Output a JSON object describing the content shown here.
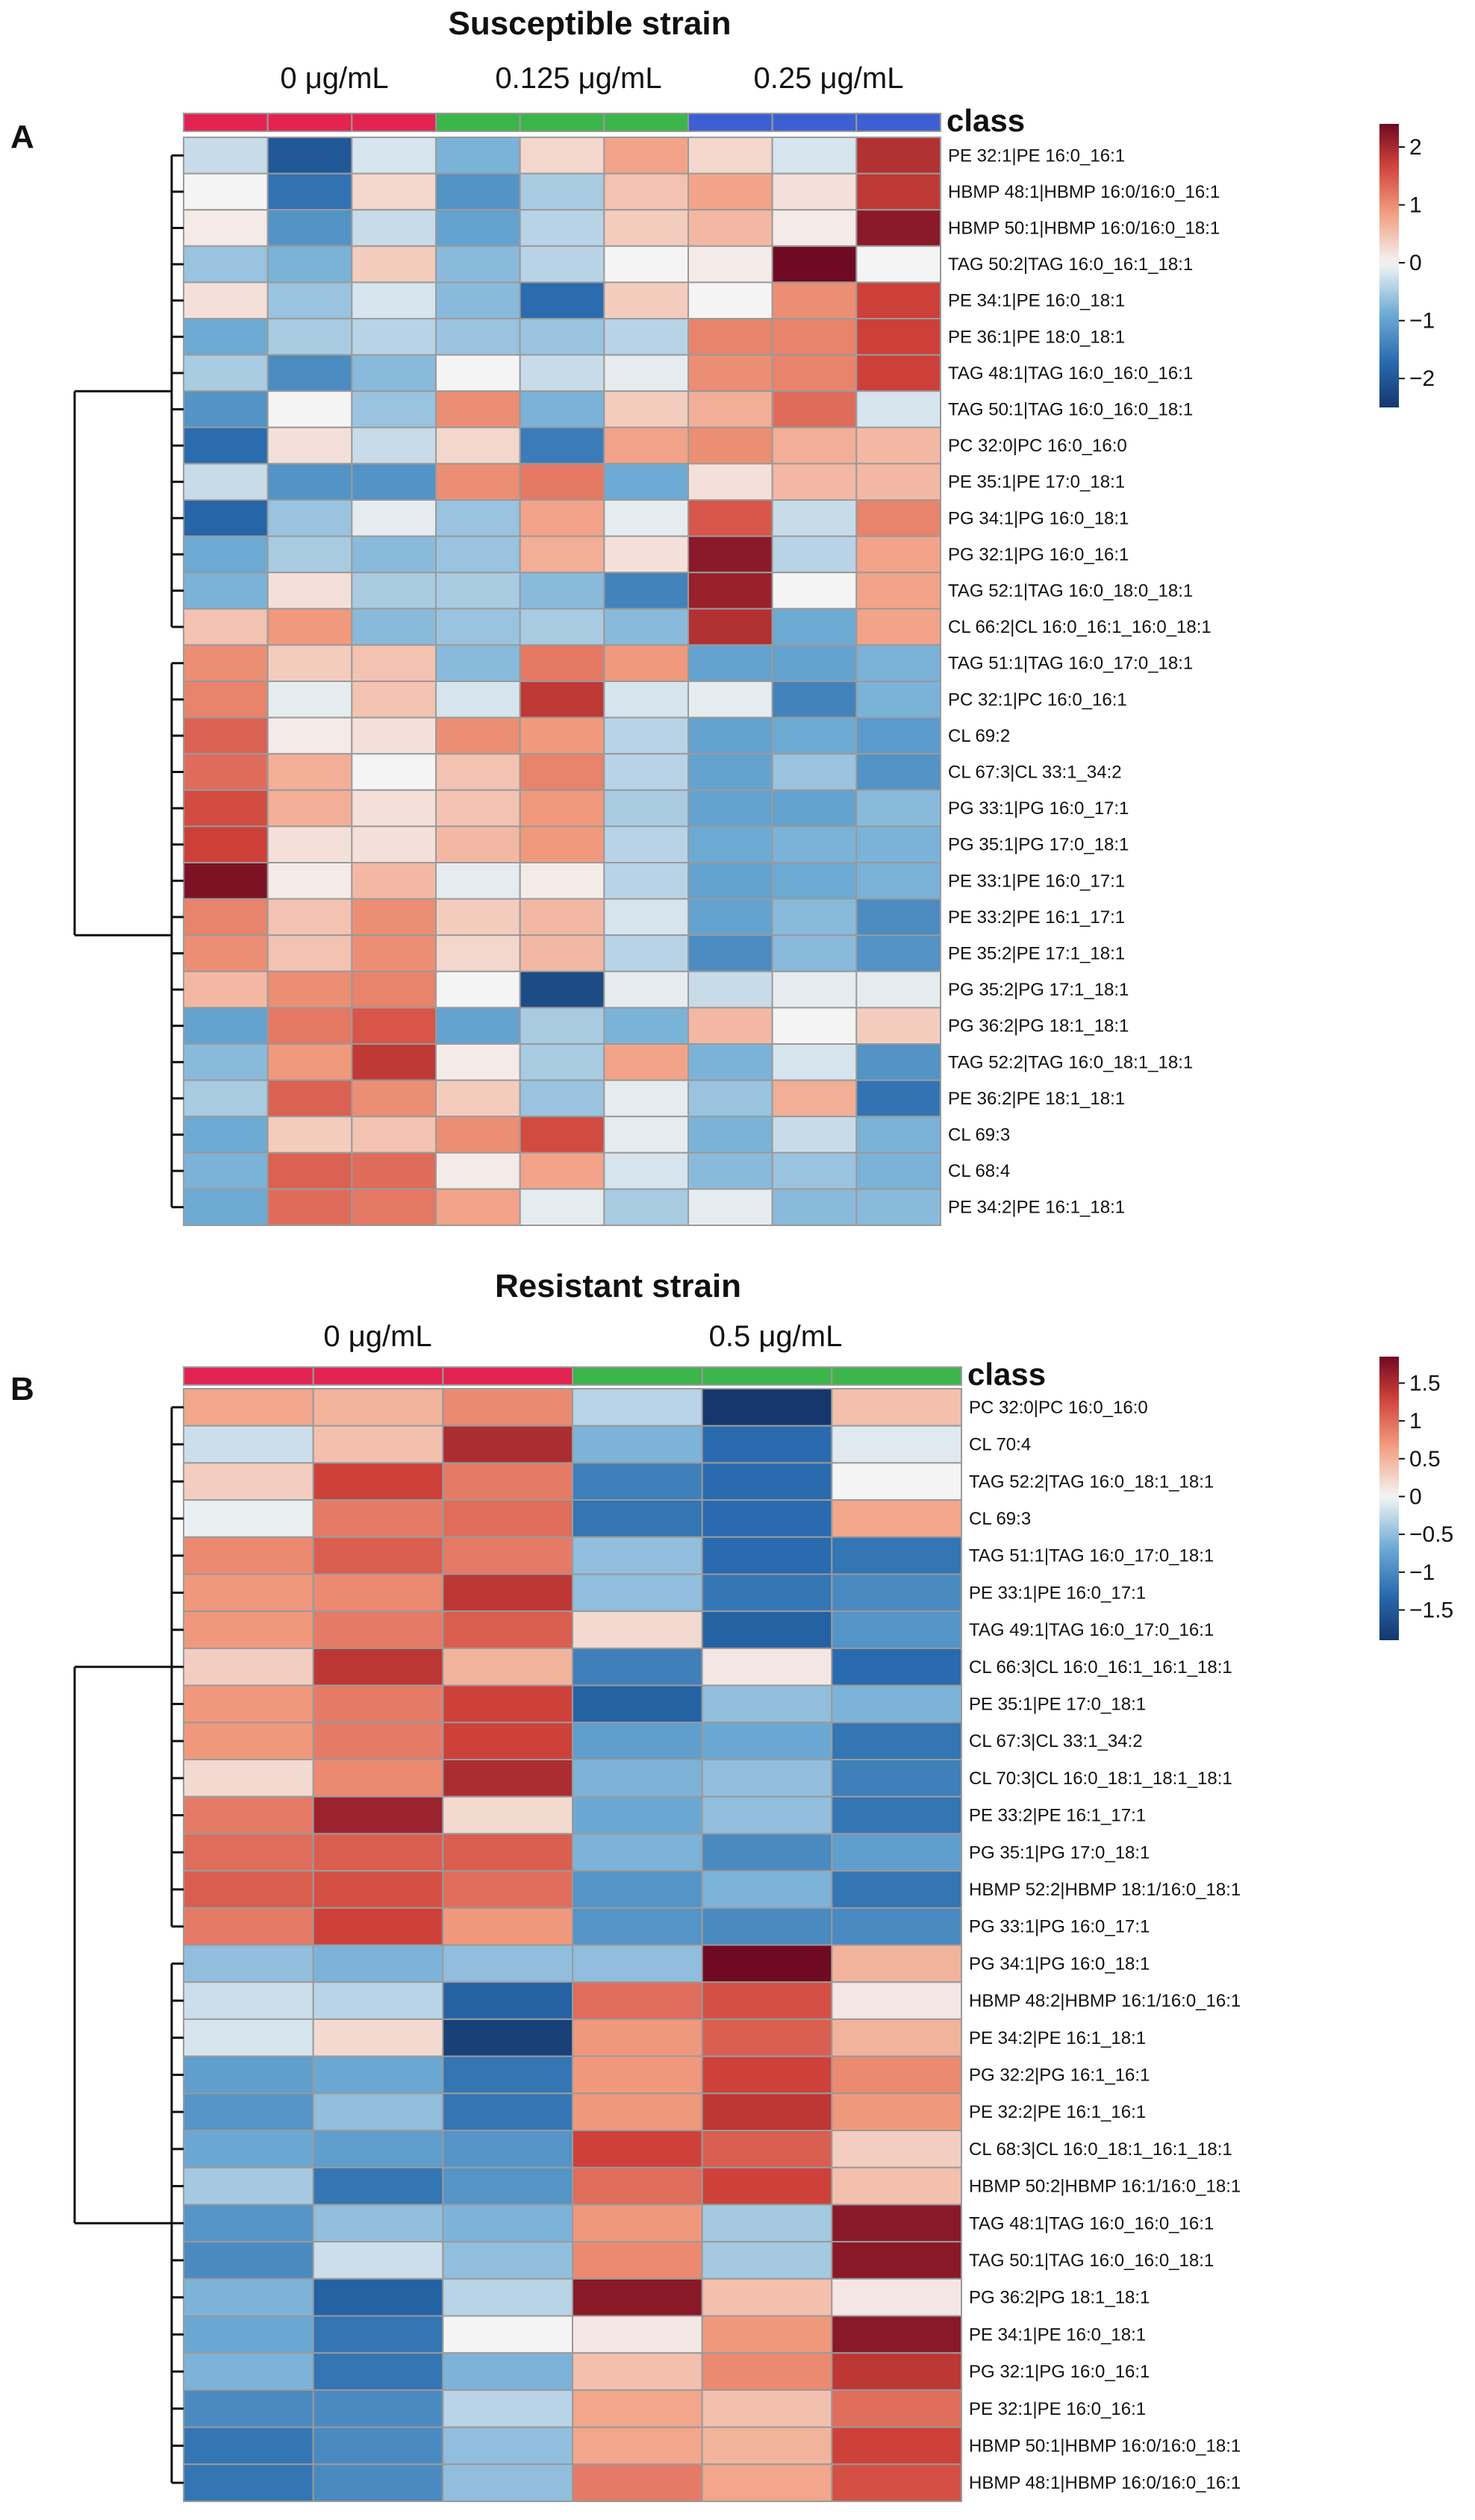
{
  "chart_data": [
    {
      "type": "heatmap",
      "panel_label": "A",
      "title": "Susceptible strain",
      "class_label": "class",
      "groups": [
        {
          "name": "0 μg/mL",
          "color": "#e32351",
          "n": 3
        },
        {
          "name": "0.125 μg/mL",
          "color": "#3cb54a",
          "n": 3
        },
        {
          "name": "0.25 μg/mL",
          "color": "#3d5fd1",
          "n": 3
        }
      ],
      "colorbar": {
        "min": -2.5,
        "max": 2.4,
        "ticks": [
          2,
          1,
          0,
          -1,
          -2
        ],
        "tick_labels": [
          "2",
          "1",
          "0",
          "−1",
          "−2"
        ]
      },
      "rows": [
        "PE 32:1|PE 16:0_16:1",
        "HBMP 48:1|HBMP 16:0/16:0_16:1",
        "HBMP 50:1|HBMP 16:0/16:0_18:1",
        "TAG 50:2|TAG 16:0_16:1_18:1",
        "PE 34:1|PE 16:0_18:1",
        "PE 36:1|PE 18:0_18:1",
        "TAG 48:1|TAG 16:0_16:0_16:1",
        "TAG 50:1|TAG 16:0_16:0_18:1",
        "PC 32:0|PC 16:0_16:0",
        "PE 35:1|PE 17:0_18:1",
        "PG 34:1|PG 16:0_18:1",
        "PG 32:1|PG 16:0_16:1",
        "TAG 52:1|TAG 16:0_18:0_18:1",
        "CL 66:2|CL 16:0_16:1_16:0_18:1",
        "TAG 51:1|TAG 16:0_17:0_18:1",
        "PC 32:1|PC 16:0_16:1",
        "CL 69:2",
        "CL 67:3|CL 33:1_34:2",
        "PG 33:1|PG 16:0_17:1",
        "PG 35:1|PG 17:0_18:1",
        "PE 33:1|PE 16:0_17:1",
        "PE 33:2|PE 16:1_17:1",
        "PE 35:2|PE 17:1_18:1",
        "PG 35:2|PG 17:1_18:1",
        "PG 36:2|PG 18:1_18:1",
        "TAG 52:2|TAG 16:0_18:1_18:1",
        "PE 36:2|PE 18:1_18:1",
        "CL 69:3",
        "CL 68:4",
        "PE 34:2|PE 16:1_18:1"
      ],
      "values": [
        [
          -0.3,
          -2.0,
          -0.2,
          -0.8,
          0.3,
          0.8,
          0.3,
          -0.2,
          1.9
        ],
        [
          0.0,
          -1.6,
          0.3,
          -1.2,
          -0.5,
          0.5,
          0.8,
          0.2,
          1.8
        ],
        [
          0.1,
          -1.2,
          -0.3,
          -1.0,
          -0.4,
          0.4,
          0.6,
          0.1,
          2.2
        ],
        [
          -0.6,
          -0.8,
          0.4,
          -0.7,
          -0.4,
          0.0,
          0.1,
          2.4,
          0.0
        ],
        [
          0.2,
          -0.6,
          -0.2,
          -0.7,
          -1.7,
          0.4,
          0.0,
          1.0,
          1.7
        ],
        [
          -0.9,
          -0.5,
          -0.4,
          -0.6,
          -0.6,
          -0.4,
          1.1,
          1.1,
          1.7
        ],
        [
          -0.5,
          -1.3,
          -0.7,
          0.0,
          -0.3,
          -0.1,
          1.0,
          1.1,
          1.7
        ],
        [
          -1.2,
          0.0,
          -0.6,
          1.0,
          -0.8,
          0.4,
          0.7,
          1.3,
          -0.2
        ],
        [
          -1.7,
          0.2,
          -0.3,
          0.3,
          -1.5,
          0.8,
          1.0,
          0.7,
          0.6
        ],
        [
          -0.3,
          -1.2,
          -1.2,
          1.0,
          1.2,
          -0.9,
          0.2,
          0.6,
          0.6
        ],
        [
          -1.8,
          -0.6,
          -0.1,
          -0.6,
          0.8,
          -0.1,
          1.5,
          -0.3,
          1.1
        ],
        [
          -0.9,
          -0.5,
          -0.7,
          -0.6,
          0.7,
          0.2,
          2.2,
          -0.4,
          0.8
        ],
        [
          -0.8,
          0.2,
          -0.5,
          -0.5,
          -0.7,
          -1.4,
          2.1,
          0.0,
          0.8
        ],
        [
          0.5,
          0.9,
          -0.7,
          -0.6,
          -0.5,
          -0.7,
          1.9,
          -0.9,
          0.8
        ],
        [
          1.0,
          0.4,
          0.5,
          -0.7,
          1.2,
          0.9,
          -1.0,
          -1.0,
          -0.8
        ],
        [
          1.1,
          -0.1,
          0.5,
          -0.2,
          1.8,
          -0.2,
          -0.1,
          -1.4,
          -0.8
        ],
        [
          1.4,
          0.1,
          0.2,
          1.0,
          0.9,
          -0.4,
          -1.0,
          -0.9,
          -1.1
        ],
        [
          1.3,
          0.7,
          0.0,
          0.5,
          1.1,
          -0.4,
          -1.0,
          -0.6,
          -1.2
        ],
        [
          1.6,
          0.7,
          0.2,
          0.5,
          0.9,
          -0.5,
          -1.0,
          -1.0,
          -0.7
        ],
        [
          1.7,
          0.2,
          0.2,
          0.6,
          0.9,
          -0.4,
          -0.9,
          -0.8,
          -0.8
        ],
        [
          2.3,
          0.1,
          0.6,
          -0.1,
          0.1,
          -0.4,
          -1.0,
          -0.9,
          -0.8
        ],
        [
          1.1,
          0.5,
          1.0,
          0.4,
          0.6,
          -0.2,
          -1.0,
          -0.7,
          -1.3
        ],
        [
          1.0,
          0.5,
          1.0,
          0.3,
          0.6,
          -0.4,
          -1.3,
          -0.7,
          -1.2
        ],
        [
          0.6,
          1.0,
          1.1,
          0.0,
          -2.2,
          -0.1,
          -0.3,
          -0.1,
          -0.1
        ],
        [
          -1.0,
          1.2,
          1.5,
          -1.0,
          -0.5,
          -0.8,
          0.6,
          0.0,
          0.4
        ],
        [
          -0.7,
          0.9,
          1.8,
          0.1,
          -0.5,
          0.8,
          -0.8,
          -0.2,
          -1.2
        ],
        [
          -0.5,
          1.4,
          1.0,
          0.4,
          -0.6,
          -0.1,
          -0.6,
          0.7,
          -1.6
        ],
        [
          -0.9,
          0.4,
          0.5,
          1.0,
          1.6,
          -0.1,
          -0.8,
          -0.3,
          -0.8
        ],
        [
          -0.8,
          1.4,
          1.3,
          0.1,
          0.8,
          -0.2,
          -0.7,
          -0.6,
          -0.8
        ],
        [
          -0.9,
          1.3,
          1.2,
          0.8,
          -0.1,
          -0.5,
          -0.1,
          -0.7,
          -0.7
        ]
      ],
      "row_dendrogram": {
        "clusters": [
          {
            "rows": [
              0,
              1,
              2,
              3,
              4,
              5,
              6,
              7,
              8,
              9,
              10,
              11,
              12,
              13
            ]
          },
          {
            "rows": [
              14,
              15,
              16,
              17,
              18,
              19,
              20,
              21,
              22,
              23,
              24,
              25,
              26,
              27,
              28,
              29
            ]
          }
        ]
      }
    },
    {
      "type": "heatmap",
      "panel_label": "B",
      "title": "Resistant strain",
      "class_label": "class",
      "groups": [
        {
          "name": "0 μg/mL",
          "color": "#e32351",
          "n": 3
        },
        {
          "name": "0.5 μg/mL",
          "color": "#3cb54a",
          "n": 3
        }
      ],
      "colorbar": {
        "min": -1.9,
        "max": 1.85,
        "ticks": [
          1.5,
          1,
          0.5,
          0,
          -0.5,
          -1,
          -1.5
        ],
        "tick_labels": [
          "1.5",
          "1",
          "0.5",
          "0",
          "−0.5",
          "−1",
          "−1.5"
        ]
      },
      "rows": [
        "PC 32:0|PC 16:0_16:0",
        "CL 70:4",
        "TAG 52:2|TAG 16:0_18:1_18:1",
        "CL 69:3",
        "TAG 51:1|TAG 16:0_17:0_18:1",
        "PE 33:1|PE 16:0_17:1",
        "TAG 49:1|TAG 16:0_17:0_16:1",
        "CL 66:3|CL 16:0_16:1_16:1_18:1",
        "PE 35:1|PE 17:0_18:1",
        "CL 67:3|CL 33:1_34:2",
        "CL 70:3|CL 16:0_18:1_18:1_18:1",
        "PE 33:2|PE 16:1_17:1",
        "PG 35:1|PG 17:0_18:1",
        "HBMP 52:2|HBMP 18:1/16:0_18:1",
        "PG 33:1|PG 16:0_17:1",
        "PG 34:1|PG 16:0_18:1",
        "HBMP 48:2|HBMP 16:1/16:0_16:1",
        "PE 34:2|PE 16:1_18:1",
        "PG 32:2|PG 16:1_16:1",
        "PE 32:2|PE 16:1_16:1",
        "CL 68:3|CL 16:0_18:1_16:1_18:1",
        "HBMP 50:2|HBMP 16:1/16:0_18:1",
        "TAG 48:1|TAG 16:0_16:0_16:1",
        "TAG 50:1|TAG 16:0_16:0_18:1",
        "PG 36:2|PG 18:1_18:1",
        "PE 34:1|PE 16:0_18:1",
        "PG 32:1|PG 16:0_16:1",
        "PE 32:1|PE 16:0_16:1",
        "HBMP 50:1|HBMP 16:0/16:0_18:1",
        "HBMP 48:1|HBMP 16:0/16:0_16:1"
      ],
      "values": [
        [
          0.6,
          0.5,
          0.8,
          -0.3,
          -1.9,
          0.4
        ],
        [
          -0.2,
          0.4,
          1.5,
          -0.6,
          -1.3,
          -0.1
        ],
        [
          0.3,
          1.3,
          0.9,
          -1.1,
          -1.3,
          0.0
        ],
        [
          -0.05,
          0.9,
          1.0,
          -1.2,
          -1.3,
          0.6
        ],
        [
          0.8,
          1.1,
          0.9,
          -0.5,
          -1.3,
          -1.2
        ],
        [
          0.7,
          0.8,
          1.4,
          -0.5,
          -1.2,
          -1.0
        ],
        [
          0.7,
          0.9,
          1.1,
          0.2,
          -1.4,
          -0.9
        ],
        [
          0.3,
          1.4,
          0.5,
          -1.1,
          0.1,
          -1.3
        ],
        [
          0.7,
          0.9,
          1.3,
          -1.4,
          -0.5,
          -0.6
        ],
        [
          0.7,
          0.9,
          1.3,
          -0.8,
          -0.7,
          -1.2
        ],
        [
          0.2,
          0.8,
          1.5,
          -0.6,
          -0.5,
          -1.1
        ],
        [
          0.9,
          1.6,
          0.2,
          -0.7,
          -0.5,
          -1.2
        ],
        [
          1.0,
          1.1,
          1.1,
          -0.6,
          -1.0,
          -0.8
        ],
        [
          1.1,
          1.2,
          1.0,
          -0.9,
          -0.6,
          -1.2
        ],
        [
          0.9,
          1.3,
          0.7,
          -0.9,
          -1.0,
          -1.0
        ],
        [
          -0.5,
          -0.6,
          -0.5,
          -0.5,
          1.85,
          0.5
        ],
        [
          -0.2,
          -0.3,
          -1.4,
          1.0,
          1.2,
          0.1
        ],
        [
          -0.15,
          0.2,
          -1.8,
          0.7,
          1.1,
          0.5
        ],
        [
          -0.8,
          -0.7,
          -1.2,
          0.7,
          1.3,
          0.8
        ],
        [
          -0.9,
          -0.5,
          -1.2,
          0.7,
          1.4,
          0.7
        ],
        [
          -0.7,
          -0.8,
          -0.9,
          1.3,
          1.1,
          0.3
        ],
        [
          -0.4,
          -1.2,
          -0.9,
          1.0,
          1.3,
          0.4
        ],
        [
          -0.9,
          -0.5,
          -0.6,
          0.7,
          -0.4,
          1.7
        ],
        [
          -1.0,
          -0.2,
          -0.5,
          0.8,
          -0.4,
          1.7
        ],
        [
          -0.6,
          -1.4,
          -0.3,
          1.7,
          0.4,
          0.1
        ],
        [
          -0.7,
          -1.2,
          0.0,
          0.1,
          0.7,
          1.7
        ],
        [
          -0.6,
          -1.2,
          -0.6,
          0.4,
          0.8,
          1.4
        ],
        [
          -1.0,
          -1.0,
          -0.3,
          0.6,
          0.4,
          1.0
        ],
        [
          -1.2,
          -1.0,
          -0.5,
          0.6,
          0.5,
          1.3
        ],
        [
          -1.2,
          -1.0,
          -0.5,
          0.9,
          0.6,
          1.2
        ]
      ],
      "row_dendrogram": {
        "clusters": [
          {
            "rows": [
              0,
              1,
              2,
              3,
              4,
              5,
              6,
              7,
              8,
              9,
              10,
              11,
              12,
              13,
              14
            ]
          },
          {
            "rows": [
              15,
              16,
              17,
              18,
              19,
              20,
              21,
              22,
              23,
              24,
              25,
              26,
              27,
              28,
              29
            ]
          }
        ]
      }
    }
  ]
}
